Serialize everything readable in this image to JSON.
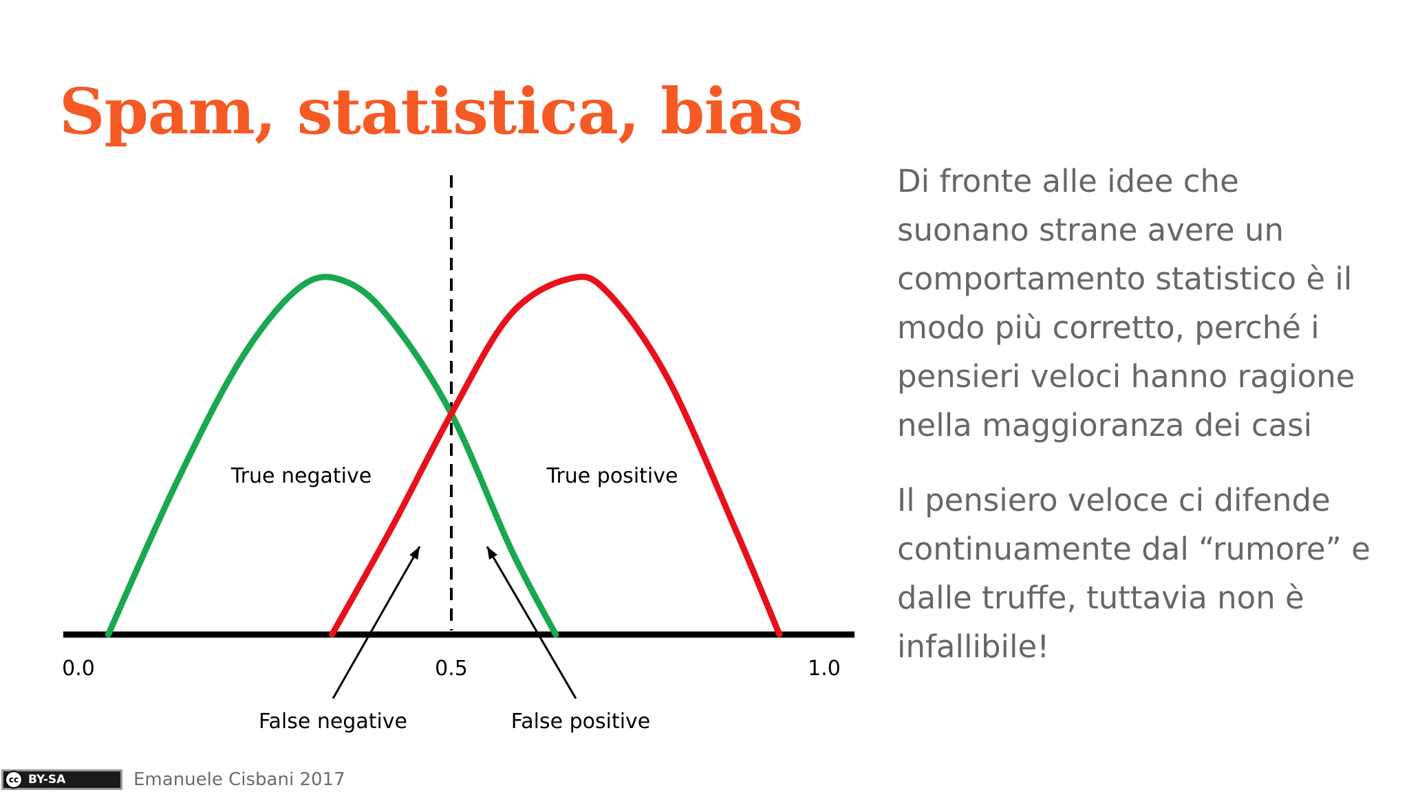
{
  "slide": {
    "title": "Spam, statistica, bias",
    "paragraphs": [
      "Di fronte alle idee che suonano strane avere un comportamento statistico è il modo più corretto, perché i pensieri veloci hanno ragione nella maggioranza dei casi",
      "Il pensiero veloce ci difende continuamente dal “rumore” e dalle truffe, tuttavia non è infallibile!"
    ]
  },
  "footer": {
    "license": "BY-SA",
    "cc_icon": "cc",
    "author": "Emanuele Cisbani 2017"
  },
  "chart_data": {
    "type": "line",
    "title": "",
    "xlabel": "",
    "ylabel": "",
    "xlim": [
      0.0,
      1.0
    ],
    "x_ticks": [
      "0.0",
      "0.5",
      "1.0"
    ],
    "threshold": 0.5,
    "series": [
      {
        "color": "#19a84f",
        "x": [
          0.04,
          0.13,
          0.22,
          0.3,
          0.36,
          0.42,
          0.5,
          0.58,
          0.64
        ],
        "y": [
          0.0,
          0.42,
          0.78,
          0.98,
          0.99,
          0.88,
          0.62,
          0.24,
          0.0
        ]
      },
      {
        "color": "#e8101b",
        "x": [
          0.34,
          0.42,
          0.5,
          0.58,
          0.66,
          0.71,
          0.79,
          0.88,
          0.94
        ],
        "y": [
          0.0,
          0.3,
          0.62,
          0.9,
          1.0,
          0.96,
          0.72,
          0.3,
          0.0
        ]
      }
    ],
    "annotations": [
      "True negative",
      "True positive",
      "False negative",
      "False positive"
    ],
    "colors": {
      "negative": "#19a84f",
      "positive": "#e8101b",
      "axis": "#000000"
    }
  }
}
